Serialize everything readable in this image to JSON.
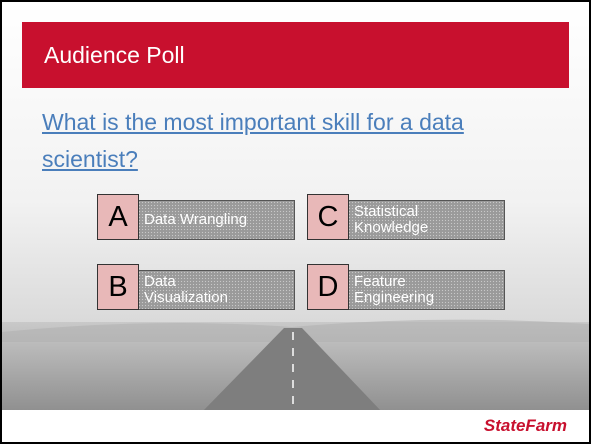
{
  "header": {
    "title": "Audience Poll"
  },
  "question": "What is the most important skill for a data scientist?",
  "options": [
    {
      "letter": "A",
      "label": [
        "Data Wrangling"
      ]
    },
    {
      "letter": "C",
      "label": [
        "Statistical",
        "Knowledge"
      ]
    },
    {
      "letter": "B",
      "label": [
        "Data",
        "Visualization"
      ]
    },
    {
      "letter": "D",
      "label": [
        "Feature",
        "Engineering"
      ]
    }
  ],
  "footer": {
    "logo": "StateFarm"
  }
}
